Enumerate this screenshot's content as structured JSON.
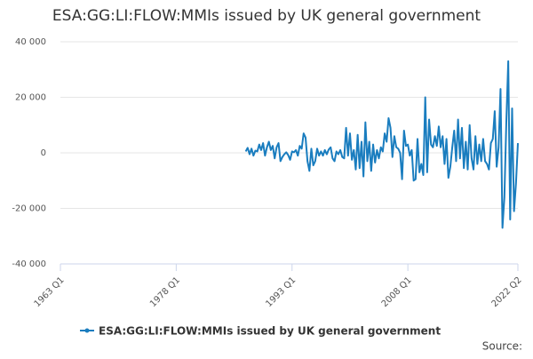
{
  "chart_data": {
    "type": "line",
    "title": "ESA:GG:LI:FLOW:MMIs issued by UK general government",
    "source": "Source:",
    "x": [
      1987,
      1987.25,
      1987.5,
      1987.75,
      1988,
      1988.25,
      1988.5,
      1988.75,
      1989,
      1989.25,
      1989.5,
      1989.75,
      1990,
      1990.25,
      1990.5,
      1990.75,
      1991,
      1991.25,
      1991.5,
      1991.75,
      1992,
      1992.25,
      1992.5,
      1992.75,
      1993,
      1993.25,
      1993.5,
      1993.75,
      1994,
      1994.25,
      1994.5,
      1994.75,
      1995,
      1995.25,
      1995.5,
      1995.75,
      1996,
      1996.25,
      1996.5,
      1996.75,
      1997,
      1997.25,
      1997.5,
      1997.75,
      1998,
      1998.25,
      1998.5,
      1998.75,
      1999,
      1999.25,
      1999.5,
      1999.75,
      2000,
      2000.25,
      2000.5,
      2000.75,
      2001,
      2001.25,
      2001.5,
      2001.75,
      2002,
      2002.25,
      2002.5,
      2002.75,
      2003,
      2003.25,
      2003.5,
      2003.75,
      2004,
      2004.25,
      2004.5,
      2004.75,
      2005,
      2005.25,
      2005.5,
      2005.75,
      2006,
      2006.25,
      2006.5,
      2006.75,
      2007,
      2007.25,
      2007.5,
      2007.75,
      2008,
      2008.25,
      2008.5,
      2008.75,
      2009,
      2009.25,
      2009.5,
      2009.75,
      2010,
      2010.25,
      2010.5,
      2010.75,
      2011,
      2011.25,
      2011.5,
      2011.75,
      2012,
      2012.25,
      2012.5,
      2012.75,
      2013,
      2013.25,
      2013.5,
      2013.75,
      2014,
      2014.25,
      2014.5,
      2014.75,
      2015,
      2015.25,
      2015.5,
      2015.75,
      2016,
      2016.25,
      2016.5,
      2016.75,
      2017,
      2017.25,
      2017.5,
      2017.75,
      2018,
      2018.25,
      2018.5,
      2018.75,
      2019,
      2019.25,
      2019.5,
      2019.75,
      2020,
      2020.25,
      2020.5,
      2020.75,
      2021,
      2021.25,
      2021.5,
      2021.75,
      2022,
      2022.25
    ],
    "series": [
      {
        "name": "ESA:GG:LI:FLOW:MMIs issued by UK general government",
        "color": "#1a7dbf",
        "values": [
          500,
          1800,
          -500,
          1500,
          -1000,
          800,
          500,
          3000,
          1000,
          3500,
          -1000,
          2000,
          4000,
          1000,
          2500,
          -2000,
          2000,
          3500,
          -3000,
          -1500,
          -500,
          200,
          -800,
          -2500,
          500,
          200,
          1000,
          -1000,
          2500,
          1500,
          7000,
          5500,
          -3000,
          -6500,
          1500,
          -4500,
          -3000,
          1500,
          -1000,
          500,
          -1000,
          1000,
          -500,
          1200,
          2000,
          -2000,
          -3000,
          500,
          -500,
          1000,
          -1500,
          -2000,
          9000,
          -1000,
          7000,
          -2500,
          1000,
          -6000,
          6500,
          -5500,
          4000,
          -8500,
          11000,
          -3000,
          4000,
          -6500,
          3000,
          -3500,
          1000,
          -2000,
          2000,
          500,
          7000,
          4000,
          12500,
          9000,
          -1500,
          6000,
          2000,
          1500,
          0,
          -9500,
          8000,
          2500,
          3000,
          -1000,
          1000,
          -10000,
          -9500,
          5000,
          -7000,
          -4000,
          -8000,
          20000,
          -7000,
          12000,
          3000,
          2000,
          6000,
          2500,
          9500,
          2000,
          6000,
          -4000,
          5000,
          -9000,
          -5000,
          2000,
          8000,
          -3000,
          12000,
          -2000,
          9000,
          -5500,
          4000,
          -6000,
          10000,
          -2000,
          -6000,
          6000,
          -4000,
          3000,
          -3000,
          5000,
          -3000,
          -4000,
          -6000,
          3500,
          5000,
          15000,
          -5000,
          2000,
          23000,
          -27000,
          -16000,
          11000,
          33000,
          -24000,
          16000,
          -21000,
          -11000,
          3500
        ]
      }
    ],
    "xlim": [
      1963,
      2022.25
    ],
    "xticks": [
      {
        "value": 1963,
        "label": "1963 Q1"
      },
      {
        "value": 1978,
        "label": "1978 Q1"
      },
      {
        "value": 1993,
        "label": "1993 Q1"
      },
      {
        "value": 2008,
        "label": "2008 Q1"
      },
      {
        "value": 2022.25,
        "label": "2022 Q2"
      }
    ],
    "ylim": [
      -40000,
      40000
    ],
    "yticks": [
      {
        "value": -40000,
        "label": "-40 000"
      },
      {
        "value": -20000,
        "label": "-20 000"
      },
      0,
      {
        "value": 20000,
        "label": "20 000"
      },
      {
        "value": 40000,
        "label": "40 000"
      }
    ],
    "grid": true
  }
}
